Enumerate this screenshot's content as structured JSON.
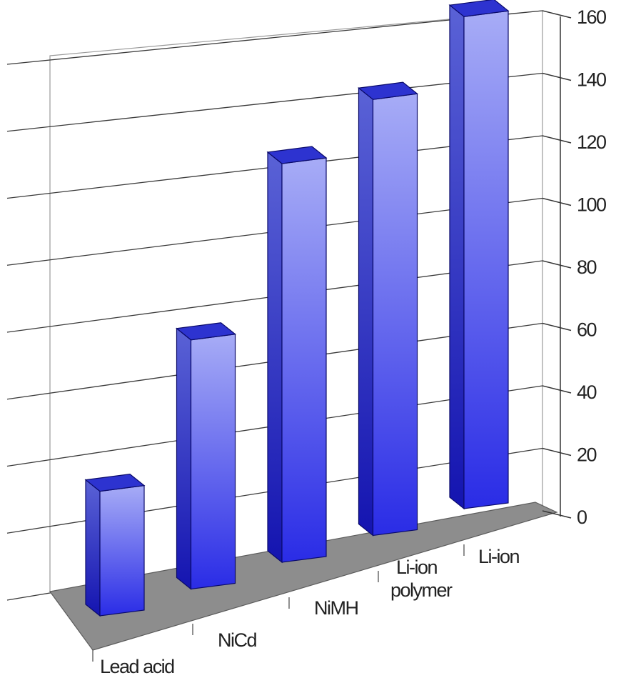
{
  "chart_data": {
    "type": "bar",
    "categories": [
      "Lead acid",
      "NiCd",
      "NiMH",
      "Li-ion polymer",
      "Li-ion"
    ],
    "category_label_lines": [
      [
        "Lead acid"
      ],
      [
        "NiCd"
      ],
      [
        "NiMH"
      ],
      [
        "Li-ion",
        "polymer"
      ],
      [
        "Li-ion"
      ]
    ],
    "values": [
      40,
      80,
      128,
      140,
      158
    ],
    "ylim": [
      0,
      160
    ],
    "y_ticks": [
      0,
      20,
      40,
      60,
      80,
      100,
      120,
      140,
      160
    ],
    "grid": true,
    "style": "3d",
    "title": "",
    "xlabel": "",
    "ylabel": ""
  },
  "colors": {
    "bar_front_top": "#a7acf6",
    "bar_front_bottom": "#2a2ce6",
    "bar_side_top": "#5a62d6",
    "bar_side_bottom": "#1414b0",
    "bar_top": "#2d33d0",
    "floor": "#8d8d8d",
    "gridline": "#3a3a3a",
    "wall": "#ffffff"
  }
}
